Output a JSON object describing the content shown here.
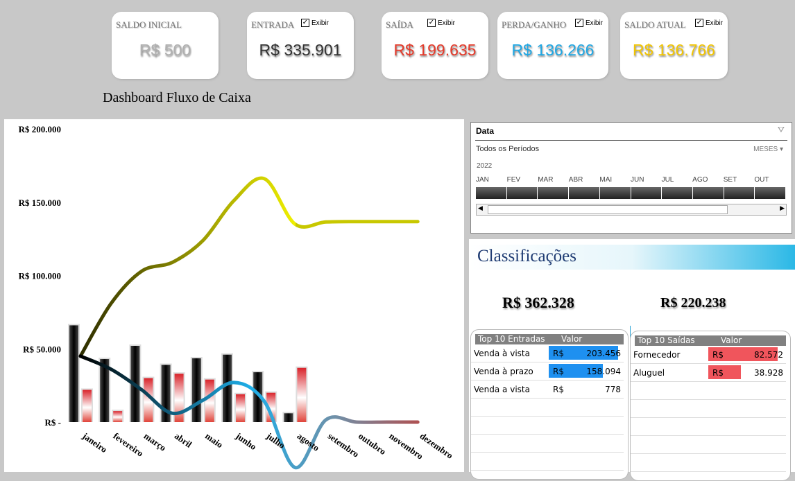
{
  "cards": [
    {
      "label": "SALDO INICIAL",
      "value": "R$ 500",
      "color": "#b0b0b0",
      "checkbox": null
    },
    {
      "label": "ENTRADA",
      "value": "R$ 335.901",
      "color": "#333333",
      "checkbox": "Exibir"
    },
    {
      "label": "SAÍDA",
      "value": "R$ 199.635",
      "color": "#e53a2a",
      "checkbox": "Exibir"
    },
    {
      "label": "PERDA/GANHO",
      "value": "R$ 136.266",
      "color": "#1ea7e4",
      "checkbox": "Exibir"
    },
    {
      "label": "SALDO ATUAL",
      "value": "R$ 136.766",
      "color": "#f2c500",
      "checkbox": "Exibir"
    }
  ],
  "title": "Dashboard Fluxo de Caixa",
  "chart_data": {
    "type": "bar+line",
    "categories": [
      "janeiro",
      "fevereiro",
      "março",
      "abril",
      "maio",
      "junho",
      "julho",
      "agosto",
      "setembro",
      "outubro",
      "novembro",
      "dezembro"
    ],
    "ylim": [
      0,
      200000
    ],
    "yticks": [
      0,
      50000,
      100000,
      150000,
      200000
    ],
    "ytick_labels": [
      "R$ -",
      "R$ 50.000",
      "R$ 100.000",
      "R$ 150.000",
      "R$ 200.000"
    ],
    "series": [
      {
        "kind": "bar",
        "color": "#222222",
        "values": [
          66000,
          43000,
          52000,
          39000,
          43500,
          46000,
          34000,
          6000,
          null,
          null,
          null,
          null
        ]
      },
      {
        "kind": "bar",
        "color": "#d9232a",
        "values": [
          22000,
          7500,
          30000,
          33000,
          29000,
          19000,
          20000,
          37000,
          null,
          null,
          null,
          null
        ]
      },
      {
        "kind": "line",
        "color": "#e8e800",
        "values": [
          45000,
          81000,
          103000,
          109000,
          124000,
          151000,
          166000,
          135000,
          136500,
          136766,
          136766,
          136766
        ]
      },
      {
        "kind": "line",
        "color": "#1ea7e4",
        "values": [
          45000,
          36000,
          22000,
          6000,
          15000,
          27000,
          14000,
          -31000,
          1500,
          0,
          0,
          0
        ]
      }
    ]
  },
  "slicer": {
    "title": "Data",
    "filter_text": "Todos os Períodos",
    "level": "MESES",
    "year": "2022",
    "months": [
      "JAN",
      "FEV",
      "MAR",
      "ABR",
      "MAI",
      "JUN",
      "JUL",
      "AGO",
      "SET",
      "OUT"
    ]
  },
  "classificacoes": {
    "title": "Classificações",
    "total_entradas": "R$ 362.328",
    "total_saidas": "R$ 220.238"
  },
  "entradas": {
    "header": "Top 10 Entradas",
    "value_header": "Valor",
    "rows": [
      {
        "name": "Venda à vista",
        "currency": "R$",
        "value": "203.456",
        "fraction": 1
      },
      {
        "name": "Venda à prazo",
        "currency": "R$",
        "value": "158.094",
        "fraction": 0.78
      },
      {
        "name": "Venda a vista",
        "currency": "R$",
        "value": "778",
        "fraction": 0
      }
    ]
  },
  "saidas": {
    "header": "Top 10 Saídas",
    "value_header": "Valor",
    "rows": [
      {
        "name": "Fornecedor",
        "currency": "R$",
        "value": "82.572",
        "fraction": 1
      },
      {
        "name": "Aluguel",
        "currency": "R$",
        "value": "38.928",
        "fraction": 0.47
      }
    ]
  }
}
